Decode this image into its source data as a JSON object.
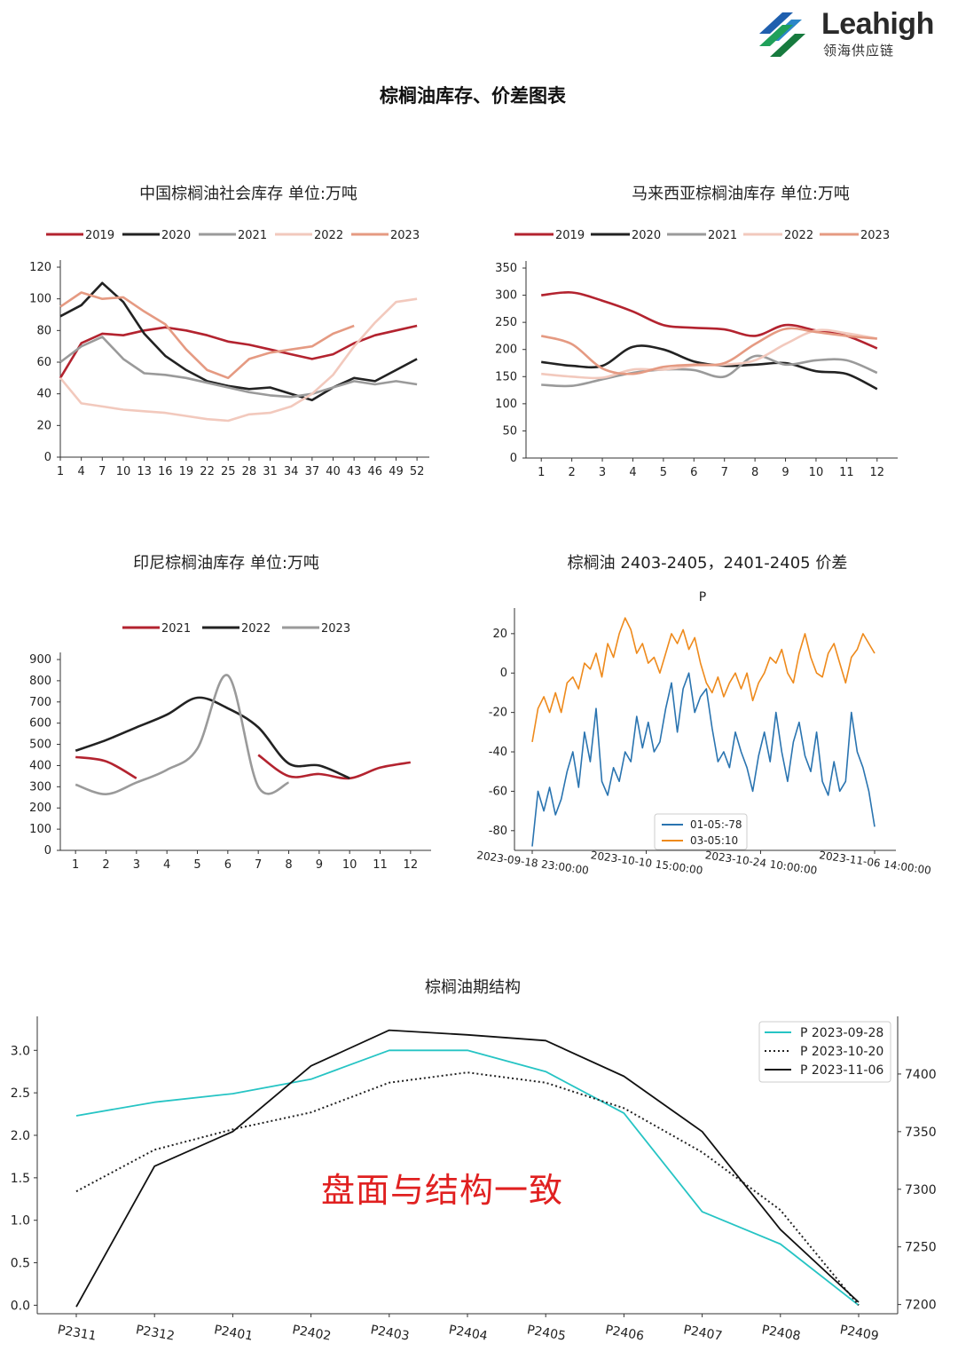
{
  "logo": {
    "name": "Leahigh",
    "subtitle": "领海供应链"
  },
  "page_title": "棕榈油库存、价差图表",
  "overlay_text": "盘面与结构一致",
  "colors": {
    "red": "#b3232f",
    "black": "#222222",
    "gray": "#9a9a9a",
    "pale": "#f2c9bd",
    "salmon": "#e59a82",
    "blue": "#2a74b0",
    "orange": "#ee8a1c",
    "teal": "#26c4c4"
  },
  "chart_data": [
    {
      "id": "china",
      "type": "line",
      "title": "中国棕榈油社会库存  单位:万吨",
      "x": [
        1,
        4,
        7,
        10,
        13,
        16,
        19,
        22,
        25,
        28,
        31,
        34,
        37,
        40,
        43,
        46,
        49,
        52
      ],
      "xlim": [
        1,
        53
      ],
      "ylim": [
        0,
        120
      ],
      "yticks": [
        0,
        20,
        40,
        60,
        80,
        100,
        120
      ],
      "legend": "top",
      "series": [
        {
          "name": "2019",
          "color": "#b3232f",
          "values": [
            50,
            72,
            78,
            77,
            80,
            82,
            80,
            77,
            73,
            71,
            68,
            65,
            62,
            65,
            72,
            77,
            80,
            83
          ]
        },
        {
          "name": "2020",
          "color": "#222222",
          "values": [
            89,
            96,
            110,
            98,
            78,
            64,
            55,
            48,
            45,
            43,
            44,
            40,
            36,
            44,
            50,
            48,
            55,
            62
          ]
        },
        {
          "name": "2021",
          "color": "#9a9a9a",
          "values": [
            60,
            70,
            76,
            62,
            53,
            52,
            50,
            47,
            44,
            41,
            39,
            38,
            40,
            44,
            48,
            46,
            48,
            46
          ]
        },
        {
          "name": "2022",
          "color": "#f2c9bd",
          "values": [
            50,
            34,
            32,
            30,
            29,
            28,
            26,
            24,
            23,
            27,
            28,
            32,
            40,
            52,
            70,
            85,
            98,
            100
          ]
        },
        {
          "name": "2023",
          "color": "#e59a82",
          "values": [
            95,
            104,
            100,
            101,
            92,
            84,
            68,
            55,
            50,
            62,
            66,
            68,
            70,
            78,
            83,
            null,
            null,
            null
          ]
        }
      ]
    },
    {
      "id": "malaysia",
      "type": "line",
      "title": "马来西亚棕榈油库存  单位:万吨",
      "x": [
        1,
        2,
        3,
        4,
        5,
        6,
        7,
        8,
        9,
        10,
        11,
        12
      ],
      "xlim": [
        0.5,
        12.5
      ],
      "ylim": [
        0,
        350
      ],
      "yticks": [
        0,
        50,
        100,
        150,
        200,
        250,
        300,
        350
      ],
      "legend": "top",
      "series": [
        {
          "name": "2019",
          "color": "#b3232f",
          "values": [
            300,
            305,
            290,
            270,
            245,
            240,
            237,
            225,
            245,
            235,
            225,
            202
          ]
        },
        {
          "name": "2020",
          "color": "#222222",
          "values": [
            177,
            170,
            170,
            205,
            200,
            178,
            170,
            172,
            175,
            160,
            155,
            127
          ]
        },
        {
          "name": "2021",
          "color": "#9a9a9a",
          "values": [
            135,
            133,
            145,
            157,
            163,
            162,
            150,
            188,
            172,
            180,
            180,
            157
          ]
        },
        {
          "name": "2022",
          "color": "#f2c9bd",
          "values": [
            155,
            150,
            148,
            163,
            163,
            170,
            172,
            180,
            210,
            235,
            230,
            220
          ]
        },
        {
          "name": "2023",
          "color": "#e59a82",
          "values": [
            225,
            210,
            165,
            155,
            168,
            172,
            175,
            210,
            238,
            232,
            225,
            220
          ]
        }
      ]
    },
    {
      "id": "indonesia",
      "type": "line",
      "title": "印尼棕榈油库存  单位:万吨",
      "x": [
        1,
        2,
        3,
        4,
        5,
        6,
        7,
        8,
        9,
        10,
        11,
        12
      ],
      "xlim": [
        0.5,
        12.5
      ],
      "ylim": [
        0,
        900
      ],
      "yticks": [
        0,
        100,
        200,
        300,
        400,
        500,
        600,
        700,
        800,
        900
      ],
      "legend": "top",
      "series": [
        {
          "name": "2021",
          "color": "#b3232f",
          "values": [
            440,
            420,
            340,
            null,
            null,
            null,
            450,
            350,
            360,
            340,
            390,
            415
          ]
        },
        {
          "name": "2022",
          "color": "#222222",
          "values": [
            470,
            520,
            580,
            640,
            720,
            670,
            580,
            410,
            400,
            340,
            null,
            null
          ]
        },
        {
          "name": "2023",
          "color": "#9a9a9a",
          "values": [
            310,
            265,
            320,
            380,
            480,
            825,
            300,
            320,
            null,
            null,
            null,
            null
          ]
        }
      ]
    },
    {
      "id": "spread",
      "type": "line",
      "title": "棕榈油 2403-2405，2401-2405 价差",
      "subtitle": "P",
      "x_start": "2023-09-18 23:00:00",
      "x_ticks": [
        "2023-09-18 23:00:00",
        "2023-10-10 15:00:00",
        "2023-10-24 10:00:00",
        "2023-11-06 14:00:00"
      ],
      "ylim": [
        -90,
        33
      ],
      "yticks": [
        20,
        0,
        -20,
        -40,
        -60,
        -80
      ],
      "legend": "lower-center",
      "series": [
        {
          "name": "01-05:-78",
          "color": "#2a74b0",
          "values": [
            -88,
            -60,
            -70,
            -58,
            -72,
            -64,
            -50,
            -40,
            -58,
            -30,
            -45,
            -18,
            -55,
            -62,
            -48,
            -55,
            -40,
            -45,
            -22,
            -38,
            -25,
            -40,
            -35,
            -18,
            -5,
            -30,
            -8,
            0,
            -20,
            -12,
            -8,
            -28,
            -45,
            -40,
            -48,
            -30,
            -40,
            -48,
            -60,
            -42,
            -30,
            -45,
            -20,
            -40,
            -55,
            -35,
            -25,
            -42,
            -50,
            -30,
            -55,
            -62,
            -45,
            -60,
            -55,
            -20,
            -40,
            -48,
            -60,
            -78
          ]
        },
        {
          "name": "03-05:10",
          "color": "#ee8a1c",
          "values": [
            -35,
            -18,
            -12,
            -20,
            -10,
            -20,
            -5,
            -2,
            -8,
            5,
            2,
            10,
            -2,
            15,
            8,
            20,
            28,
            22,
            10,
            15,
            5,
            8,
            0,
            10,
            20,
            15,
            22,
            12,
            18,
            5,
            -5,
            -10,
            -2,
            -12,
            -5,
            0,
            -8,
            0,
            -14,
            -5,
            0,
            8,
            5,
            12,
            0,
            -5,
            10,
            20,
            8,
            0,
            -2,
            10,
            15,
            5,
            -5,
            8,
            12,
            20,
            15,
            10
          ]
        }
      ]
    },
    {
      "id": "structure",
      "type": "line",
      "title": "棕榈油期结构",
      "categories": [
        "P2311",
        "P2312",
        "P2401",
        "P2402",
        "P2403",
        "P2404",
        "P2405",
        "P2406",
        "P2407",
        "P2408",
        "P2409"
      ],
      "ylim_left": [
        -0.1,
        3.4
      ],
      "yticks_left": [
        0.0,
        0.5,
        1.0,
        1.5,
        2.0,
        2.5,
        3.0
      ],
      "ylim_right": [
        7192,
        7450
      ],
      "yticks_right": [
        7200,
        7250,
        7300,
        7350,
        7400
      ],
      "legend": "top-right",
      "series": [
        {
          "name": "P 2023-09-28",
          "axis": "left",
          "color": "#26c4c4",
          "style": "solid",
          "values": [
            2.23,
            2.39,
            2.49,
            2.66,
            3.0,
            3.0,
            2.75,
            2.26,
            1.1,
            0.72,
            0.0
          ]
        },
        {
          "name": "P 2023-10-20",
          "axis": "left",
          "color": "#222222",
          "style": "dotted",
          "values": [
            1.34,
            1.83,
            2.07,
            2.27,
            2.62,
            2.74,
            2.62,
            2.32,
            1.8,
            1.12,
            0.0
          ]
        },
        {
          "name": "P 2023-11-06",
          "axis": "right",
          "color": "#111111",
          "style": "solid",
          "values": [
            7198,
            7320,
            7350,
            7407,
            7438,
            7434,
            7429,
            7398,
            7350,
            7265,
            7202
          ]
        }
      ]
    }
  ]
}
